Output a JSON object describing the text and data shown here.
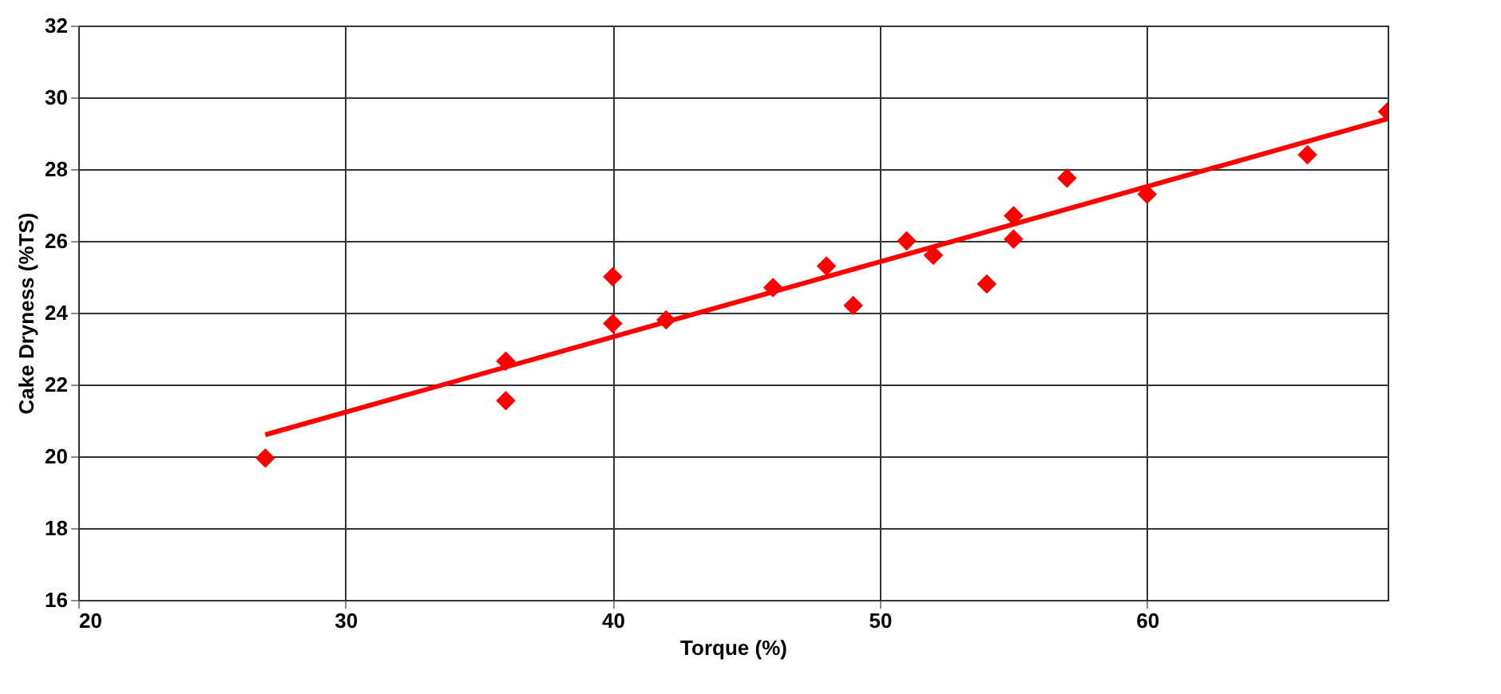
{
  "chart_data": {
    "type": "scatter",
    "xlabel": "Torque (%)",
    "ylabel": "Cake Dryness (%TS)",
    "xlim": [
      20,
      69
    ],
    "xticks": [
      20,
      30,
      40,
      50,
      60
    ],
    "ylim": [
      16,
      32
    ],
    "yticks": [
      16,
      18,
      20,
      22,
      24,
      26,
      28,
      30,
      32
    ],
    "grid": true,
    "marker": "diamond",
    "series": [
      {
        "color": "#ff0000",
        "x": [
          27,
          36,
          36,
          40,
          40,
          42,
          46,
          48,
          49,
          51,
          52,
          54,
          55,
          55,
          57,
          60,
          66,
          69
        ],
        "values": [
          19.95,
          22.65,
          21.55,
          25.0,
          23.7,
          23.8,
          24.7,
          25.3,
          24.2,
          26.0,
          25.6,
          24.8,
          26.7,
          26.05,
          27.75,
          27.3,
          28.4,
          29.6
        ]
      },
      {
        "type": "line",
        "color": "#ff0000",
        "marker": "none",
        "line_style": "solid",
        "x": [
          27,
          69
        ],
        "values": [
          20.6,
          29.4
        ]
      }
    ]
  }
}
